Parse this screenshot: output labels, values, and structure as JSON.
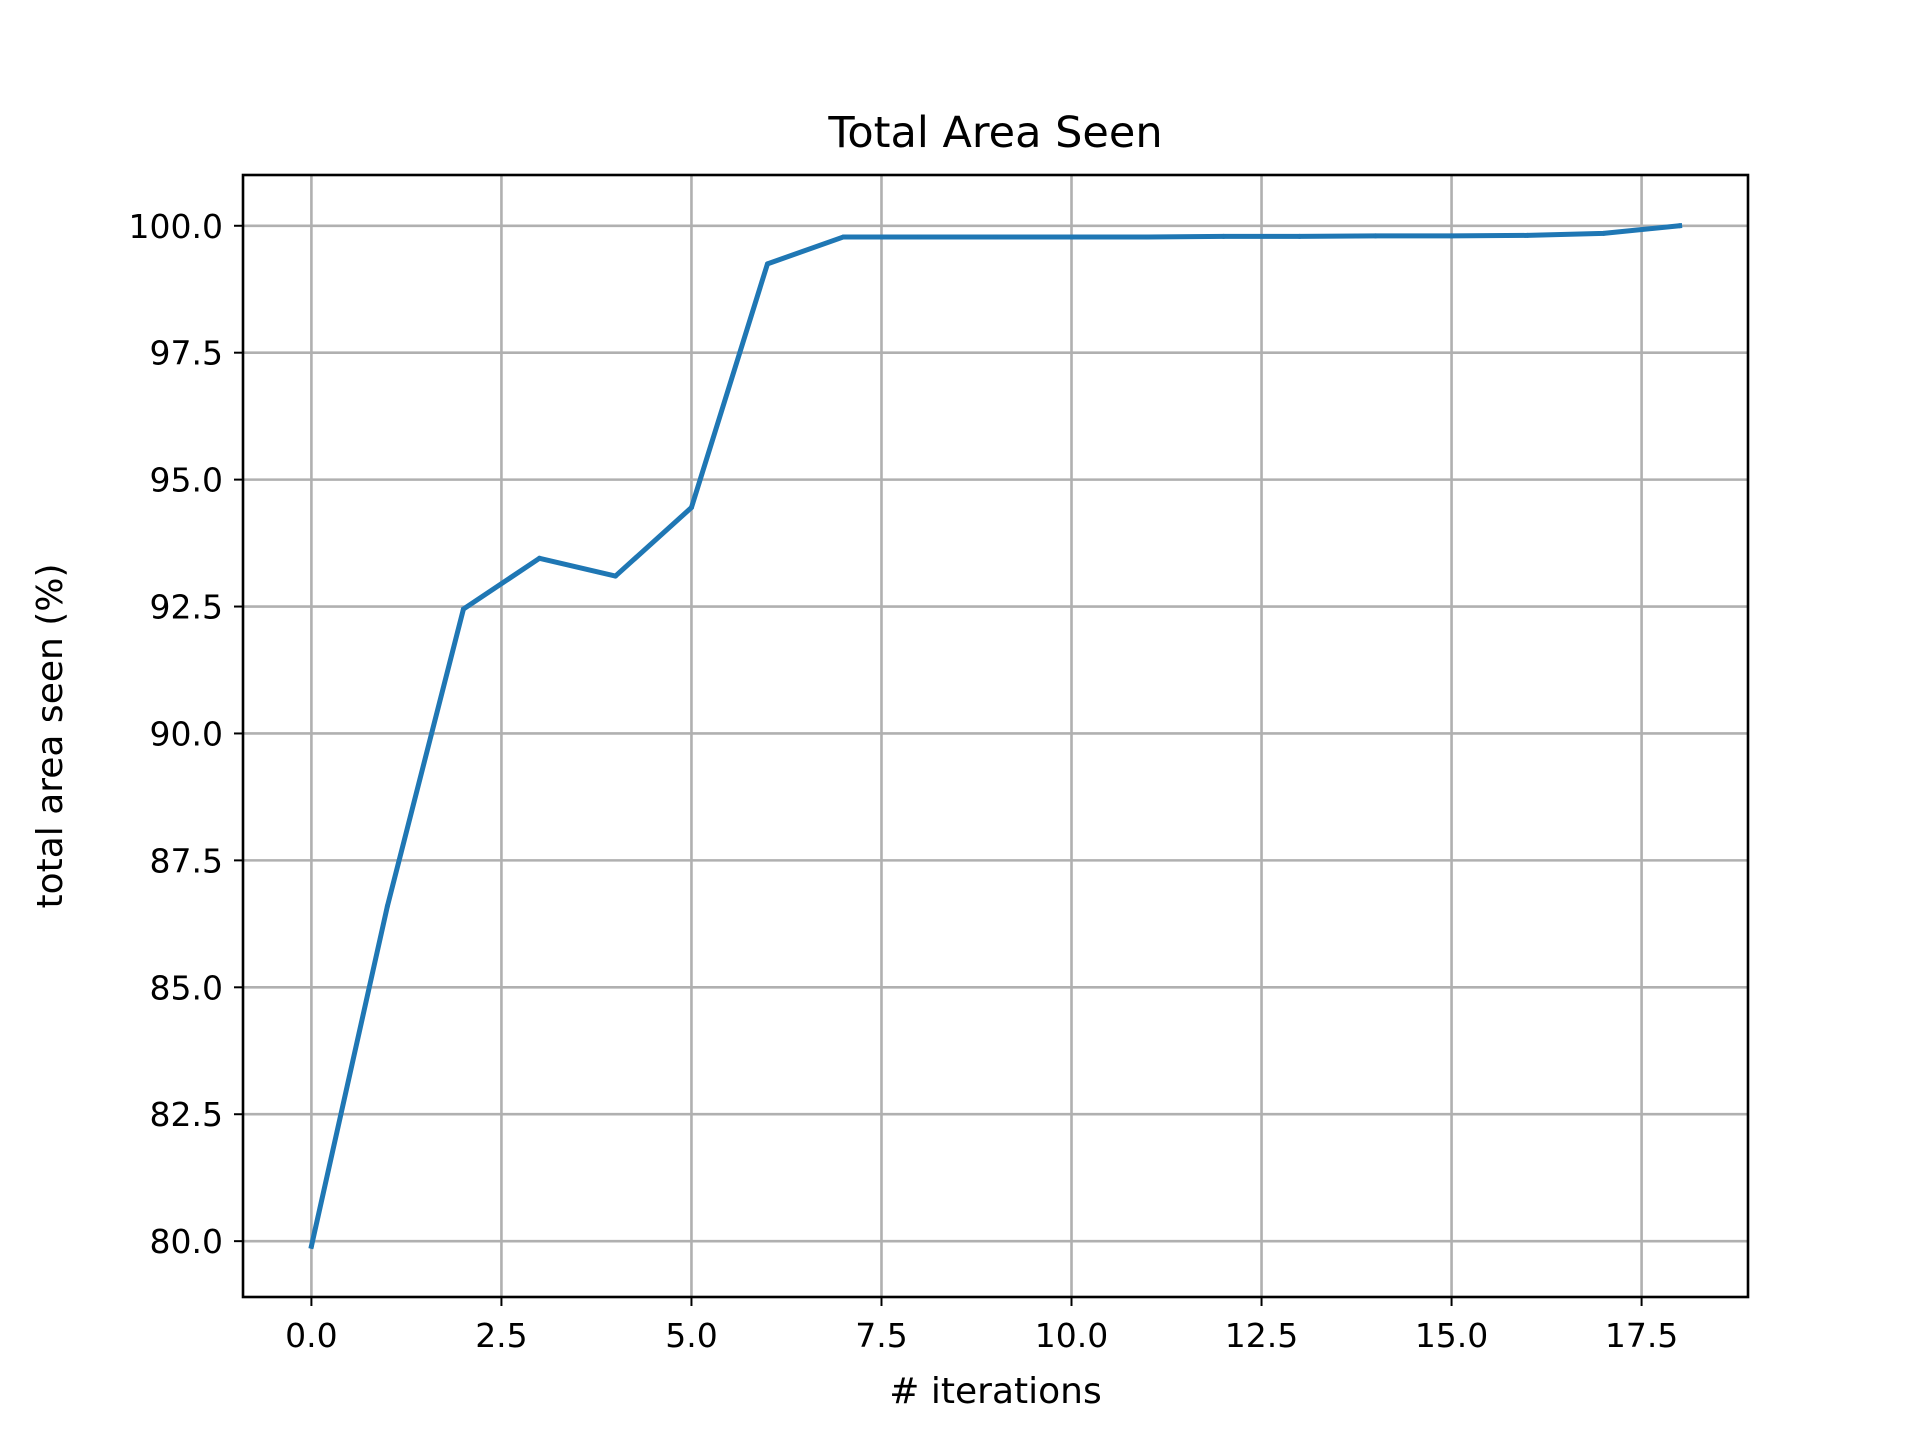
{
  "chart_data": {
    "type": "line",
    "title": "Total Area Seen",
    "xlabel": "# iterations",
    "ylabel": "total area seen (%)",
    "xlim": [
      -0.9,
      18.9
    ],
    "ylim": [
      78.9,
      101.0
    ],
    "xticks": [
      0.0,
      2.5,
      5.0,
      7.5,
      10.0,
      12.5,
      15.0,
      17.5
    ],
    "xtick_labels": [
      "0.0",
      "2.5",
      "5.0",
      "7.5",
      "10.0",
      "12.5",
      "15.0",
      "17.5"
    ],
    "yticks": [
      80.0,
      82.5,
      85.0,
      87.5,
      90.0,
      92.5,
      95.0,
      97.5,
      100.0
    ],
    "ytick_labels": [
      "80.0",
      "82.5",
      "85.0",
      "87.5",
      "90.0",
      "92.5",
      "95.0",
      "97.5",
      "100.0"
    ],
    "grid": true,
    "series": [
      {
        "color": "#1f77b4",
        "x": [
          0,
          1,
          2,
          3,
          4,
          5,
          6,
          7,
          8,
          9,
          10,
          11,
          12,
          13,
          14,
          15,
          16,
          17,
          18
        ],
        "y": [
          79.9,
          86.6,
          92.45,
          93.45,
          93.1,
          94.45,
          99.25,
          99.78,
          99.78,
          99.78,
          99.78,
          99.78,
          99.79,
          99.79,
          99.8,
          99.8,
          99.81,
          99.85,
          100.0
        ]
      }
    ]
  }
}
